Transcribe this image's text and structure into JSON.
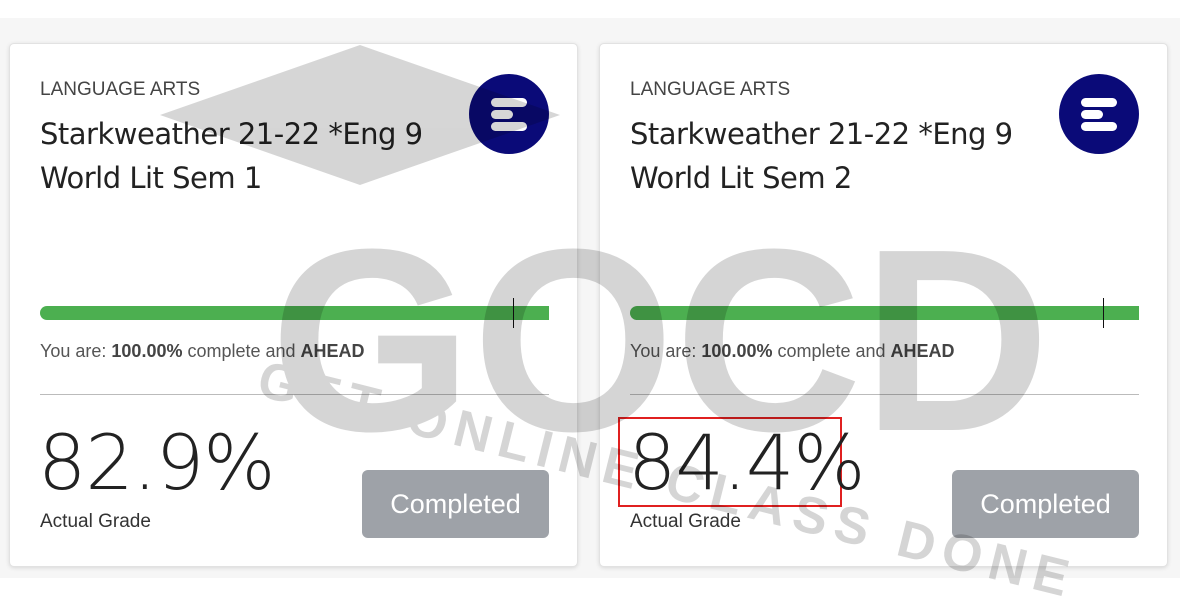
{
  "cards": [
    {
      "category": "LANGUAGE ARTS",
      "title": "Starkweather 21-22 *Eng 9 World Lit Sem 1",
      "progress_percent": 100,
      "status_prefix": "You are: ",
      "status_percent": "100.00%",
      "status_mid": " complete and ",
      "status_pace": "AHEAD",
      "grade": "82.9%",
      "grade_label": "Actual Grade",
      "button_label": "Completed",
      "highlighted": false
    },
    {
      "category": "LANGUAGE ARTS",
      "title": "Starkweather 21-22 *Eng 9 World Lit Sem 2",
      "progress_percent": 100,
      "status_prefix": "You are: ",
      "status_percent": "100.00%",
      "status_mid": " complete and ",
      "status_pace": "AHEAD",
      "grade": "84.4%",
      "grade_label": "Actual Grade",
      "button_label": "Completed",
      "highlighted": true
    }
  ],
  "watermark": {
    "logo": "GOCD",
    "tagline": "GET ONLINE CLASS DONE"
  },
  "colors": {
    "progress": "#4caf50",
    "logo_bg": "#0a0a78",
    "button": "#9ea2a8",
    "highlight": "#e02020"
  }
}
